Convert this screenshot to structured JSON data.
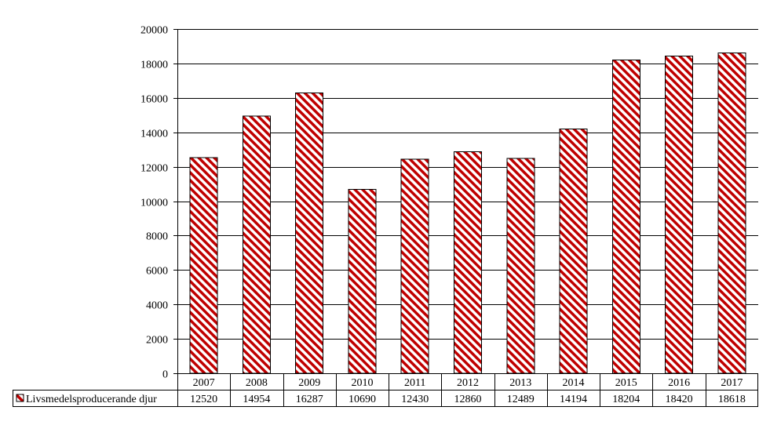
{
  "chart_data": {
    "type": "bar",
    "categories": [
      "2007",
      "2008",
      "2009",
      "2010",
      "2011",
      "2012",
      "2013",
      "2014",
      "2015",
      "2016",
      "2017"
    ],
    "series": [
      {
        "name": "Livsmedelsproducerande djur",
        "values": [
          12520,
          14954,
          16287,
          10690,
          12430,
          12860,
          12489,
          14194,
          18204,
          18420,
          18618
        ],
        "color": "#c00000",
        "pattern": "diagonal-stripes"
      }
    ],
    "yticks": [
      "0",
      "2000",
      "4000",
      "6000",
      "8000",
      "10000",
      "12000",
      "14000",
      "16000",
      "18000",
      "20000"
    ],
    "ylim": [
      0,
      20000
    ],
    "grid": true,
    "legend": "data-table-left"
  }
}
